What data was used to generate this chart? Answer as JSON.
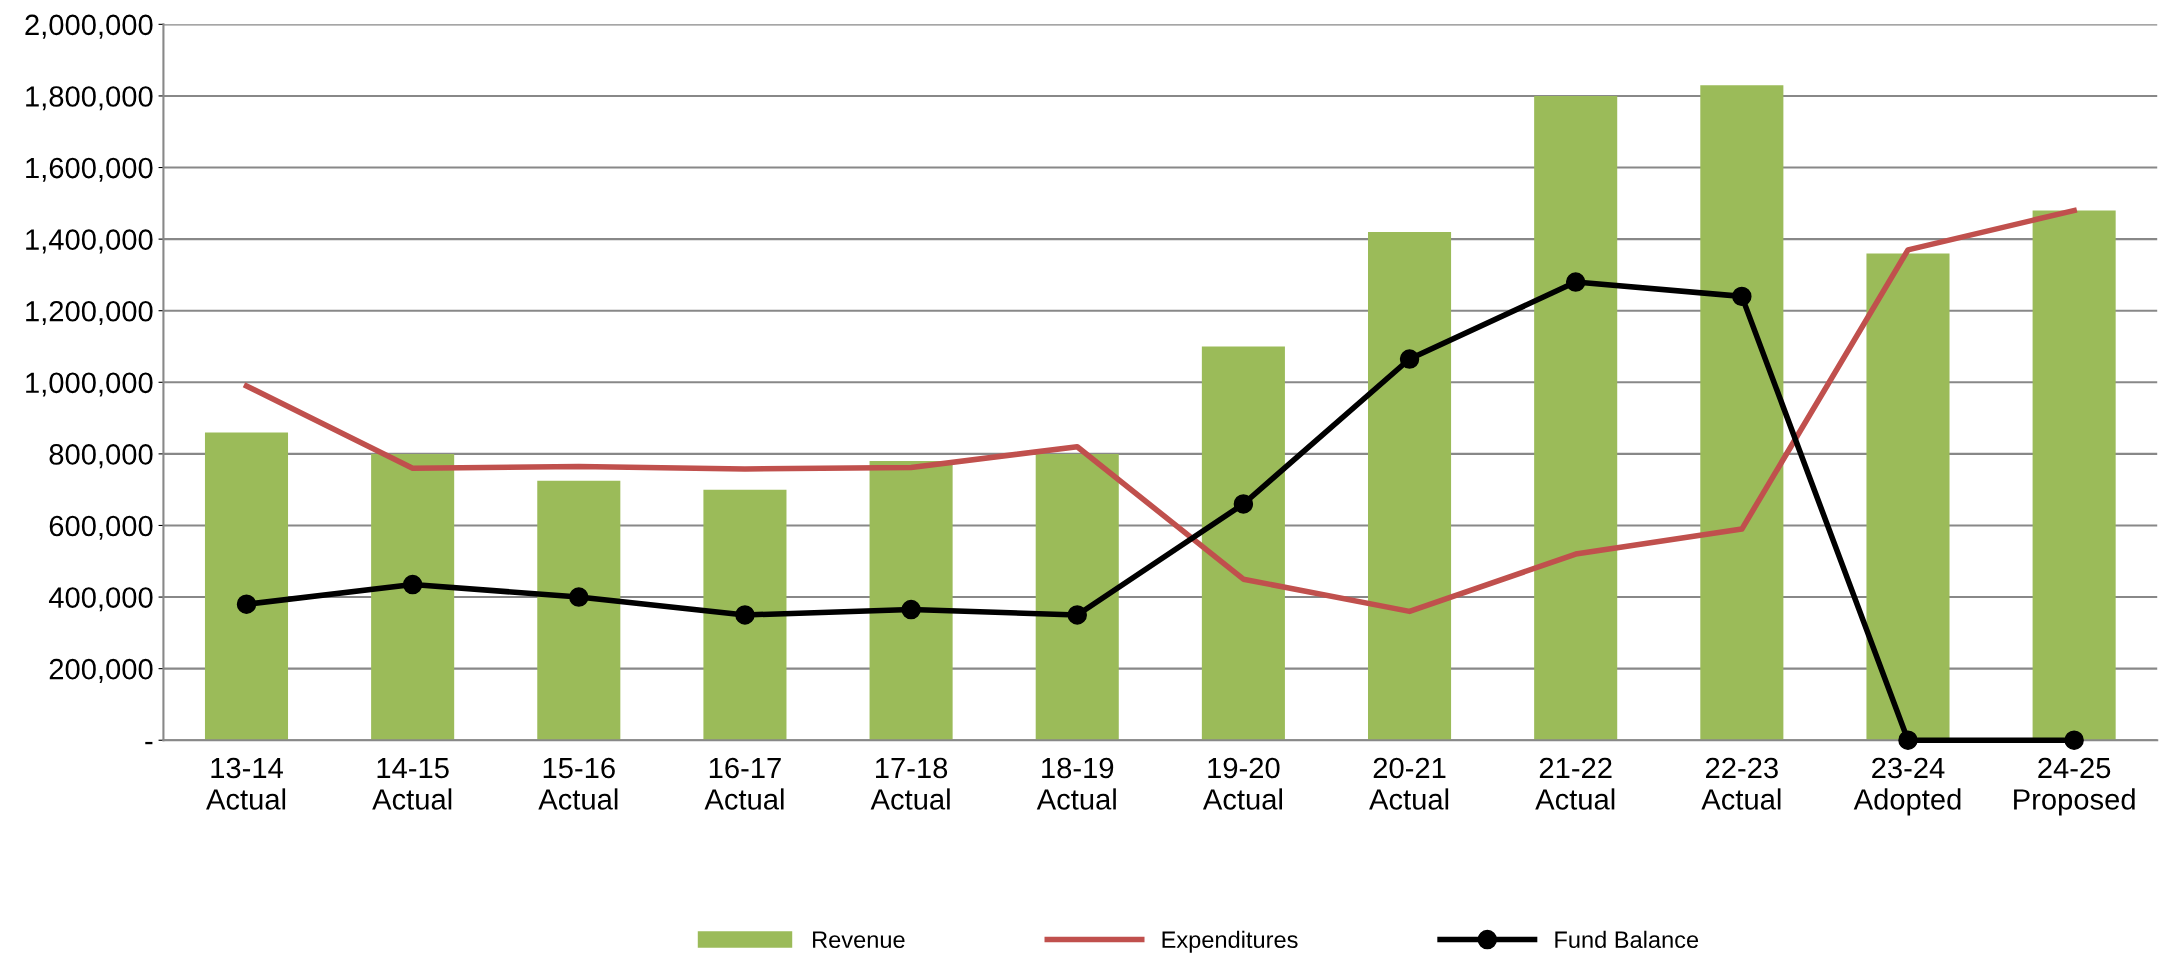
{
  "chart_data": {
    "type": "bar",
    "categories": [
      "13-14\nActual",
      "14-15\nActual",
      "15-16\nActual",
      "16-17\nActual",
      "17-18\nActual",
      "18-19\nActual",
      "19-20\nActual",
      "20-21\nActual",
      "21-22\nActual",
      "22-23\nActual",
      "23-24\nAdopted",
      "24-25\nProposed"
    ],
    "series": [
      {
        "name": "Revenue",
        "color": "#9bbb59",
        "values": [
          860000,
          800000,
          725000,
          700000,
          780000,
          800000,
          1100000,
          1420000,
          1800000,
          1830000,
          1360000,
          1480000
        ]
      },
      {
        "name": "Expenditures",
        "type": "line",
        "color": "#c0504d",
        "marker": "none",
        "values": [
          990000,
          760000,
          765000,
          758000,
          762000,
          820000,
          450000,
          360000,
          520000,
          590000,
          1370000,
          1480000
        ]
      },
      {
        "name": "Fund Balance",
        "type": "line",
        "color": "#000000",
        "marker": "circle",
        "values": [
          380000,
          435000,
          400000,
          350000,
          365000,
          350000,
          660000,
          1065000,
          1280000,
          1240000,
          0,
          0
        ]
      }
    ],
    "ylim": [
      0,
      2000000
    ],
    "yticks": [
      {
        "value": 0,
        "label": "-"
      },
      {
        "value": 200000,
        "label": "200,000"
      },
      {
        "value": 400000,
        "label": "400,000"
      },
      {
        "value": 600000,
        "label": "600,000"
      },
      {
        "value": 800000,
        "label": "800,000"
      },
      {
        "value": 1000000,
        "label": "1,000,000"
      },
      {
        "value": 1200000,
        "label": "1,200,000"
      },
      {
        "value": 1400000,
        "label": "1,400,000"
      },
      {
        "value": 1600000,
        "label": "1,600,000"
      },
      {
        "value": 1800000,
        "label": "1,800,000"
      },
      {
        "value": 2000000,
        "label": "2,000,000"
      }
    ],
    "grid": "y",
    "legend": "bottom"
  }
}
